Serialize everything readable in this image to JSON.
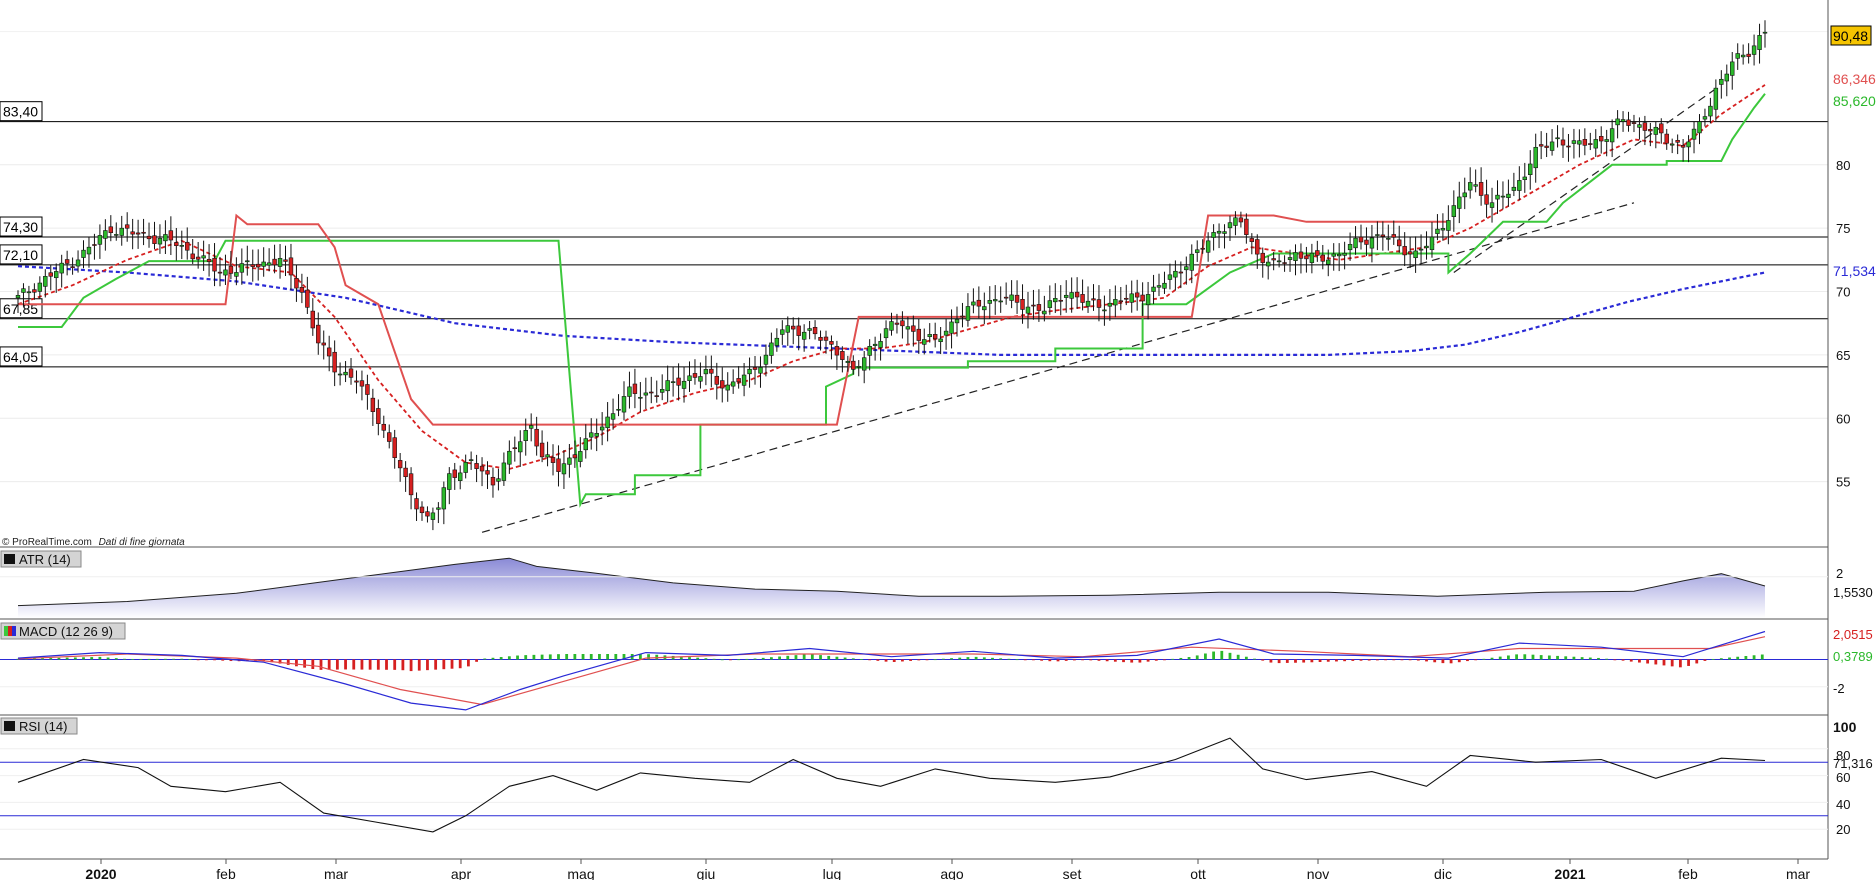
{
  "watermark": {
    "source": "© ProRealTime.com",
    "note": "Dati di fine giornata"
  },
  "price_labels": {
    "last": "90,48",
    "red_stop": "86,346",
    "green_stop": "85,620",
    "blue_ma": "71,534"
  },
  "levels": [
    {
      "label": "83,40",
      "value": 83.4
    },
    {
      "label": "74,30",
      "value": 74.3
    },
    {
      "label": "72,10",
      "value": 72.1
    },
    {
      "label": "67,85",
      "value": 67.85
    },
    {
      "label": "64,05",
      "value": 64.05
    }
  ],
  "panels": {
    "atr": {
      "title": "ATR (14)",
      "value_label": "1,5530",
      "tick": "2"
    },
    "macd": {
      "title": "MACD (12 26 9)",
      "value_label": "2,0515",
      "signal_label": "0,3789",
      "tick": "-2"
    },
    "rsi": {
      "title": "RSI (14)",
      "value_label": "71,316",
      "ticks": [
        "100",
        "80",
        "60",
        "40",
        "20"
      ]
    }
  },
  "colors": {
    "up": "#2bb82b",
    "down": "#d62020",
    "blue": "#2a2ad6",
    "red": "#e05050",
    "green": "#3cc83c",
    "last": "#f5c400"
  },
  "chart_data": {
    "type": "candlestick",
    "price_axis": {
      "range": [
        50,
        93
      ],
      "ticks": [
        55,
        60,
        65,
        70,
        75,
        80
      ]
    },
    "x_axis": {
      "labels": [
        "2020",
        "feb",
        "mar",
        "apr",
        "mag",
        "giu",
        "lug",
        "ago",
        "set",
        "ott",
        "nov",
        "dic",
        "2021",
        "feb",
        "mar"
      ]
    },
    "close_path": [
      [
        0,
        69.5
      ],
      [
        5,
        71
      ],
      [
        12,
        73
      ],
      [
        17,
        75
      ],
      [
        22,
        74.5
      ],
      [
        28,
        74
      ],
      [
        32,
        73
      ],
      [
        37,
        71.5
      ],
      [
        42,
        72
      ],
      [
        48,
        72.5
      ],
      [
        52,
        70
      ],
      [
        55,
        66
      ],
      [
        58,
        64
      ],
      [
        62,
        63
      ],
      [
        66,
        60
      ],
      [
        70,
        56
      ],
      [
        72,
        54
      ],
      [
        75,
        52
      ],
      [
        77,
        53
      ],
      [
        79,
        55.5
      ],
      [
        83,
        56.5
      ],
      [
        87,
        55
      ],
      [
        90,
        57
      ],
      [
        94,
        59.5
      ],
      [
        96,
        57
      ],
      [
        99,
        56
      ],
      [
        104,
        58
      ],
      [
        108,
        60
      ],
      [
        112,
        62
      ],
      [
        117,
        62
      ],
      [
        121,
        63
      ],
      [
        126,
        63.5
      ],
      [
        130,
        62.5
      ],
      [
        134,
        63.5
      ],
      [
        137,
        65
      ],
      [
        140,
        67
      ],
      [
        144,
        67
      ],
      [
        148,
        66
      ],
      [
        151,
        65
      ],
      [
        153,
        63.5
      ],
      [
        156,
        65.5
      ],
      [
        159,
        67
      ],
      [
        162,
        67.5
      ],
      [
        165,
        66.5
      ],
      [
        168,
        66
      ],
      [
        172,
        68
      ],
      [
        176,
        69
      ],
      [
        180,
        69.5
      ],
      [
        184,
        69
      ],
      [
        188,
        68.5
      ],
      [
        192,
        70
      ],
      [
        196,
        69
      ],
      [
        200,
        69
      ],
      [
        204,
        69.5
      ],
      [
        208,
        70
      ],
      [
        212,
        71.5
      ],
      [
        216,
        73
      ],
      [
        220,
        75
      ],
      [
        224,
        75.5
      ],
      [
        227,
        73
      ],
      [
        230,
        72
      ],
      [
        234,
        73
      ],
      [
        238,
        72.5
      ],
      [
        242,
        73
      ],
      [
        246,
        74
      ],
      [
        250,
        74.5
      ],
      [
        253,
        73.5
      ],
      [
        256,
        73
      ],
      [
        259,
        74
      ],
      [
        262,
        76
      ],
      [
        266,
        78.5
      ],
      [
        270,
        77
      ],
      [
        274,
        78
      ],
      [
        278,
        81
      ],
      [
        282,
        82
      ],
      [
        286,
        81.5
      ],
      [
        290,
        82
      ],
      [
        294,
        83.5
      ],
      [
        298,
        83
      ],
      [
        302,
        82
      ],
      [
        305,
        81.5
      ],
      [
        308,
        83
      ],
      [
        311,
        86
      ],
      [
        314,
        88
      ],
      [
        317,
        89
      ],
      [
        320,
        90.5
      ]
    ],
    "indicators": {
      "blue_ma": [
        [
          0,
          72
        ],
        [
          20,
          71.5
        ],
        [
          40,
          70.8
        ],
        [
          60,
          69.5
        ],
        [
          80,
          67.5
        ],
        [
          100,
          66.5
        ],
        [
          120,
          66
        ],
        [
          150,
          65.5
        ],
        [
          180,
          65
        ],
        [
          210,
          65
        ],
        [
          240,
          65
        ],
        [
          255,
          65.3
        ],
        [
          265,
          65.8
        ],
        [
          275,
          66.8
        ],
        [
          285,
          68
        ],
        [
          295,
          69.2
        ],
        [
          305,
          70.2
        ],
        [
          320,
          71.5
        ]
      ],
      "red_ma": [
        [
          0,
          69
        ],
        [
          10,
          70.5
        ],
        [
          20,
          72.5
        ],
        [
          30,
          74
        ],
        [
          40,
          72
        ],
        [
          50,
          71.5
        ],
        [
          58,
          68
        ],
        [
          66,
          63
        ],
        [
          74,
          59
        ],
        [
          82,
          56.5
        ],
        [
          90,
          56
        ],
        [
          98,
          57
        ],
        [
          106,
          58.5
        ],
        [
          114,
          60.5
        ],
        [
          124,
          62
        ],
        [
          134,
          63
        ],
        [
          142,
          64.5
        ],
        [
          150,
          65.5
        ],
        [
          158,
          65.5
        ],
        [
          166,
          66
        ],
        [
          174,
          67
        ],
        [
          182,
          68
        ],
        [
          190,
          68.5
        ],
        [
          200,
          69
        ],
        [
          210,
          69.5
        ],
        [
          218,
          72
        ],
        [
          226,
          73.5
        ],
        [
          234,
          73
        ],
        [
          242,
          72.5
        ],
        [
          250,
          73
        ],
        [
          258,
          73.5
        ],
        [
          266,
          75
        ],
        [
          276,
          77.5
        ],
        [
          286,
          80
        ],
        [
          296,
          82
        ],
        [
          305,
          81.5
        ],
        [
          312,
          84
        ],
        [
          320,
          86.3
        ]
      ],
      "green_stop": [
        [
          0,
          67.2
        ],
        [
          8,
          67.2
        ],
        [
          12,
          69.5
        ],
        [
          18,
          71
        ],
        [
          24,
          72.4
        ],
        [
          36,
          72.4
        ],
        [
          38,
          74
        ],
        [
          99,
          74
        ],
        [
          103,
          53.2
        ],
        [
          104,
          54
        ],
        [
          113,
          54
        ],
        [
          113,
          55.5
        ],
        [
          125,
          55.5
        ],
        [
          125,
          59.5
        ],
        [
          148,
          59.5
        ],
        [
          148,
          62.5
        ],
        [
          153,
          63.5
        ],
        [
          153,
          64
        ],
        [
          174,
          64
        ],
        [
          174,
          64.2
        ],
        [
          174,
          64.5
        ],
        [
          190,
          64.5
        ],
        [
          190,
          65.5
        ],
        [
          206,
          65.5
        ],
        [
          206,
          69
        ],
        [
          214,
          69
        ],
        [
          222,
          71.5
        ],
        [
          230,
          73
        ],
        [
          262,
          73
        ],
        [
          262,
          71.5
        ],
        [
          266,
          73
        ],
        [
          272,
          75.5
        ],
        [
          280,
          75.5
        ],
        [
          283,
          77
        ],
        [
          292,
          80
        ],
        [
          302,
          80
        ],
        [
          302,
          80.3
        ],
        [
          312,
          80.3
        ],
        [
          314,
          82
        ],
        [
          318,
          84.5
        ],
        [
          320,
          85.6
        ]
      ],
      "red_stop": [
        [
          0,
          69
        ],
        [
          38,
          69
        ],
        [
          40,
          76
        ],
        [
          42,
          75.3
        ],
        [
          55,
          75.3
        ],
        [
          58,
          73.5
        ],
        [
          60,
          70.5
        ],
        [
          66,
          69
        ],
        [
          68,
          66.5
        ],
        [
          72,
          61.5
        ],
        [
          76,
          59.5
        ],
        [
          99,
          59.5
        ],
        [
          150,
          59.5
        ],
        [
          154,
          68
        ],
        [
          170,
          68
        ],
        [
          215,
          68
        ],
        [
          218,
          76
        ],
        [
          230,
          76
        ],
        [
          236,
          75.5
        ],
        [
          262,
          75.5
        ]
      ],
      "trendline_1": [
        [
          85,
          51
        ],
        [
          296,
          77
        ]
      ],
      "trendline_2": [
        [
          263,
          71.5
        ],
        [
          311,
          86
        ]
      ]
    },
    "atr": {
      "range": [
        0,
        3.2
      ],
      "values": [
        [
          0,
          0.6
        ],
        [
          20,
          0.8
        ],
        [
          40,
          1.2
        ],
        [
          60,
          1.9
        ],
        [
          80,
          2.6
        ],
        [
          90,
          2.9
        ],
        [
          95,
          2.5
        ],
        [
          105,
          2.2
        ],
        [
          120,
          1.7
        ],
        [
          135,
          1.4
        ],
        [
          150,
          1.3
        ],
        [
          165,
          1.05
        ],
        [
          180,
          1.05
        ],
        [
          200,
          1.1
        ],
        [
          220,
          1.25
        ],
        [
          240,
          1.25
        ],
        [
          260,
          1.05
        ],
        [
          280,
          1.25
        ],
        [
          296,
          1.3
        ],
        [
          305,
          1.8
        ],
        [
          312,
          2.15
        ],
        [
          320,
          1.55
        ]
      ]
    },
    "macd": {
      "range": [
        -4,
        2.6
      ],
      "macd": [
        [
          0,
          0.1
        ],
        [
          15,
          0.5
        ],
        [
          30,
          0.3
        ],
        [
          45,
          -0.2
        ],
        [
          60,
          -1.8
        ],
        [
          72,
          -3.2
        ],
        [
          82,
          -3.7
        ],
        [
          92,
          -2.2
        ],
        [
          100,
          -1.2
        ],
        [
          115,
          0.5
        ],
        [
          130,
          0.3
        ],
        [
          145,
          0.8
        ],
        [
          160,
          0.2
        ],
        [
          175,
          0.6
        ],
        [
          190,
          0.1
        ],
        [
          205,
          0.3
        ],
        [
          220,
          1.5
        ],
        [
          230,
          0.4
        ],
        [
          245,
          0.3
        ],
        [
          262,
          0.1
        ],
        [
          275,
          1.2
        ],
        [
          290,
          0.9
        ],
        [
          305,
          0.2
        ],
        [
          320,
          2.05
        ]
      ],
      "signal": [
        [
          0,
          0.05
        ],
        [
          20,
          0.4
        ],
        [
          40,
          0.1
        ],
        [
          55,
          -0.5
        ],
        [
          70,
          -2.2
        ],
        [
          85,
          -3.3
        ],
        [
          100,
          -1.6
        ],
        [
          115,
          0.1
        ],
        [
          135,
          0.4
        ],
        [
          155,
          0.4
        ],
        [
          175,
          0.4
        ],
        [
          195,
          0.2
        ],
        [
          215,
          0.9
        ],
        [
          235,
          0.6
        ],
        [
          255,
          0.2
        ],
        [
          275,
          0.8
        ],
        [
          295,
          0.8
        ],
        [
          310,
          0.8
        ],
        [
          320,
          1.67
        ]
      ],
      "hist_value": 0.3789
    },
    "rsi": {
      "range": [
        0,
        100
      ],
      "levels": [
        70,
        30
      ],
      "values": [
        [
          0,
          55
        ],
        [
          12,
          72
        ],
        [
          22,
          66
        ],
        [
          28,
          52
        ],
        [
          38,
          48
        ],
        [
          48,
          55
        ],
        [
          56,
          32
        ],
        [
          66,
          25
        ],
        [
          76,
          18
        ],
        [
          82,
          30
        ],
        [
          90,
          52
        ],
        [
          98,
          60
        ],
        [
          106,
          49
        ],
        [
          114,
          62
        ],
        [
          124,
          58
        ],
        [
          134,
          55
        ],
        [
          142,
          72
        ],
        [
          150,
          58
        ],
        [
          158,
          52
        ],
        [
          168,
          65
        ],
        [
          178,
          58
        ],
        [
          190,
          55
        ],
        [
          200,
          59
        ],
        [
          212,
          72
        ],
        [
          222,
          88
        ],
        [
          228,
          65
        ],
        [
          236,
          57
        ],
        [
          248,
          63
        ],
        [
          258,
          52
        ],
        [
          266,
          75
        ],
        [
          278,
          70
        ],
        [
          290,
          72
        ],
        [
          300,
          58
        ],
        [
          312,
          73
        ],
        [
          320,
          71.3
        ]
      ]
    }
  }
}
